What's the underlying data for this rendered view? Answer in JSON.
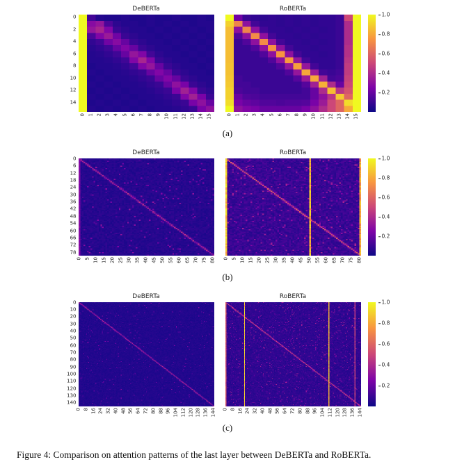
{
  "figure": {
    "caption": "Figure 4: Comparison on attention patterns of the last layer between DeBERTa and RoBERTa."
  },
  "colormap": {
    "name": "plasma",
    "stops": [
      [
        0,
        "#0d0887"
      ],
      [
        0.25,
        "#7e03a8"
      ],
      [
        0.5,
        "#cc4778"
      ],
      [
        0.75,
        "#f89540"
      ],
      [
        1,
        "#f0f921"
      ]
    ]
  },
  "colorbar": {
    "tick_labels": [
      "1.0",
      "0.8",
      "0.6",
      "0.4",
      "0.2"
    ],
    "tick_values": [
      1.0,
      0.8,
      0.6,
      0.4,
      0.2
    ]
  },
  "chart_data": [
    {
      "type": "heatmap",
      "panel_label": "(a)",
      "value_range": [
        0,
        1
      ],
      "subplots": [
        {
          "title": "DeBERTa",
          "size": 16,
          "x_ticks": [
            0,
            1,
            2,
            3,
            4,
            5,
            6,
            7,
            8,
            9,
            10,
            11,
            12,
            13,
            14,
            15
          ],
          "y_ticks": [
            0,
            2,
            4,
            6,
            8,
            10,
            12,
            14
          ],
          "values": [
            [
              1,
              0.12,
              0.05,
              0.04,
              0.04,
              0.05,
              0.04,
              0.04,
              0.05,
              0.04,
              0.04,
              0.05,
              0.04,
              0.04,
              0.05,
              0.04
            ],
            [
              1,
              0.28,
              0.32,
              0.14,
              0.07,
              0.05,
              0.05,
              0.04,
              0.05,
              0.04,
              0.05,
              0.04,
              0.05,
              0.04,
              0.05,
              0.05
            ],
            [
              1,
              0.32,
              0.38,
              0.26,
              0.1,
              0.07,
              0.05,
              0.05,
              0.04,
              0.05,
              0.04,
              0.05,
              0.04,
              0.05,
              0.04,
              0.05
            ],
            [
              1,
              0.14,
              0.26,
              0.34,
              0.22,
              0.1,
              0.07,
              0.05,
              0.05,
              0.04,
              0.05,
              0.04,
              0.05,
              0.04,
              0.05,
              0.04
            ],
            [
              1,
              0.08,
              0.11,
              0.22,
              0.28,
              0.2,
              0.1,
              0.07,
              0.05,
              0.05,
              0.04,
              0.05,
              0.04,
              0.05,
              0.04,
              0.05
            ],
            [
              1,
              0.06,
              0.08,
              0.11,
              0.2,
              0.26,
              0.2,
              0.1,
              0.07,
              0.05,
              0.05,
              0.04,
              0.05,
              0.04,
              0.05,
              0.04
            ],
            [
              1,
              0.05,
              0.06,
              0.08,
              0.11,
              0.2,
              0.32,
              0.26,
              0.12,
              0.07,
              0.05,
              0.05,
              0.04,
              0.05,
              0.04,
              0.05
            ],
            [
              1,
              0.05,
              0.05,
              0.06,
              0.08,
              0.11,
              0.26,
              0.38,
              0.26,
              0.1,
              0.07,
              0.05,
              0.05,
              0.04,
              0.05,
              0.04
            ],
            [
              1,
              0.04,
              0.05,
              0.05,
              0.06,
              0.08,
              0.12,
              0.26,
              0.32,
              0.2,
              0.1,
              0.07,
              0.05,
              0.05,
              0.04,
              0.05
            ],
            [
              1,
              0.05,
              0.04,
              0.05,
              0.05,
              0.06,
              0.08,
              0.1,
              0.2,
              0.26,
              0.2,
              0.1,
              0.07,
              0.05,
              0.05,
              0.04
            ],
            [
              1,
              0.04,
              0.05,
              0.04,
              0.05,
              0.05,
              0.06,
              0.08,
              0.1,
              0.2,
              0.26,
              0.2,
              0.1,
              0.07,
              0.05,
              0.05
            ],
            [
              1,
              0.05,
              0.04,
              0.05,
              0.04,
              0.05,
              0.05,
              0.06,
              0.08,
              0.1,
              0.2,
              0.3,
              0.24,
              0.1,
              0.07,
              0.05
            ],
            [
              1,
              0.04,
              0.05,
              0.04,
              0.05,
              0.04,
              0.05,
              0.05,
              0.06,
              0.08,
              0.1,
              0.24,
              0.36,
              0.26,
              0.1,
              0.07
            ],
            [
              1,
              0.05,
              0.04,
              0.05,
              0.04,
              0.05,
              0.04,
              0.05,
              0.05,
              0.06,
              0.08,
              0.1,
              0.26,
              0.36,
              0.24,
              0.1
            ],
            [
              1,
              0.04,
              0.05,
              0.04,
              0.05,
              0.04,
              0.05,
              0.04,
              0.05,
              0.05,
              0.06,
              0.08,
              0.1,
              0.24,
              0.3,
              0.2
            ],
            [
              1,
              0.05,
              0.04,
              0.05,
              0.04,
              0.05,
              0.04,
              0.05,
              0.04,
              0.05,
              0.05,
              0.06,
              0.08,
              0.1,
              0.24,
              0.3
            ]
          ]
        },
        {
          "title": "RoBERTa",
          "size": 16,
          "x_ticks": [
            0,
            1,
            2,
            3,
            4,
            5,
            6,
            7,
            8,
            9,
            10,
            11,
            12,
            13,
            14,
            15
          ],
          "y_ticks": [
            0,
            2,
            4,
            6,
            8,
            10,
            12,
            14
          ],
          "values": [
            [
              1,
              0.22,
              0.1,
              0.08,
              0.07,
              0.08,
              0.07,
              0.08,
              0.07,
              0.08,
              0.07,
              0.08,
              0.08,
              0.1,
              0.5,
              1
            ],
            [
              0.9,
              0.7,
              0.3,
              0.12,
              0.08,
              0.08,
              0.07,
              0.08,
              0.07,
              0.08,
              0.07,
              0.08,
              0.08,
              0.1,
              0.4,
              1
            ],
            [
              0.85,
              0.3,
              0.7,
              0.3,
              0.12,
              0.08,
              0.08,
              0.07,
              0.08,
              0.07,
              0.08,
              0.07,
              0.08,
              0.1,
              0.4,
              1
            ],
            [
              0.85,
              0.15,
              0.3,
              0.72,
              0.3,
              0.12,
              0.08,
              0.08,
              0.07,
              0.08,
              0.07,
              0.08,
              0.08,
              0.1,
              0.4,
              1
            ],
            [
              0.85,
              0.1,
              0.15,
              0.3,
              0.72,
              0.3,
              0.12,
              0.08,
              0.08,
              0.07,
              0.08,
              0.07,
              0.08,
              0.1,
              0.4,
              1
            ],
            [
              0.85,
              0.1,
              0.1,
              0.15,
              0.3,
              0.74,
              0.3,
              0.12,
              0.08,
              0.08,
              0.07,
              0.08,
              0.08,
              0.1,
              0.42,
              1
            ],
            [
              0.85,
              0.1,
              0.1,
              0.1,
              0.15,
              0.3,
              0.75,
              0.3,
              0.12,
              0.08,
              0.08,
              0.07,
              0.08,
              0.1,
              0.42,
              1
            ],
            [
              0.85,
              0.1,
              0.1,
              0.1,
              0.1,
              0.15,
              0.3,
              0.76,
              0.32,
              0.12,
              0.08,
              0.08,
              0.08,
              0.1,
              0.44,
              1
            ],
            [
              0.86,
              0.1,
              0.1,
              0.1,
              0.1,
              0.1,
              0.15,
              0.32,
              0.78,
              0.32,
              0.12,
              0.08,
              0.08,
              0.1,
              0.46,
              1
            ],
            [
              0.86,
              0.1,
              0.1,
              0.1,
              0.1,
              0.1,
              0.1,
              0.15,
              0.32,
              0.8,
              0.34,
              0.12,
              0.1,
              0.12,
              0.46,
              1
            ],
            [
              0.87,
              0.12,
              0.1,
              0.1,
              0.1,
              0.1,
              0.1,
              0.1,
              0.16,
              0.34,
              0.8,
              0.36,
              0.12,
              0.14,
              0.48,
              1
            ],
            [
              0.88,
              0.12,
              0.12,
              0.1,
              0.1,
              0.1,
              0.1,
              0.1,
              0.1,
              0.16,
              0.36,
              0.82,
              0.4,
              0.2,
              0.5,
              1
            ],
            [
              0.9,
              0.14,
              0.12,
              0.12,
              0.1,
              0.1,
              0.1,
              0.1,
              0.1,
              0.12,
              0.2,
              0.4,
              0.85,
              0.44,
              0.54,
              1
            ],
            [
              0.9,
              0.2,
              0.15,
              0.14,
              0.12,
              0.12,
              0.12,
              0.12,
              0.12,
              0.12,
              0.2,
              0.3,
              0.44,
              0.88,
              0.6,
              1
            ],
            [
              0.93,
              0.24,
              0.2,
              0.18,
              0.15,
              0.15,
              0.14,
              0.15,
              0.15,
              0.16,
              0.24,
              0.34,
              0.5,
              0.6,
              0.93,
              1
            ],
            [
              1,
              0.3,
              0.26,
              0.24,
              0.2,
              0.2,
              0.2,
              0.2,
              0.2,
              0.24,
              0.3,
              0.4,
              0.5,
              0.6,
              0.8,
              1
            ]
          ]
        }
      ]
    },
    {
      "type": "heatmap",
      "panel_label": "(b)",
      "value_range": [
        0,
        1
      ],
      "subplots": [
        {
          "title": "DeBERTa",
          "size": 81,
          "seed": 7,
          "x_ticks": [
            0,
            5,
            10,
            15,
            20,
            25,
            30,
            35,
            40,
            45,
            50,
            55,
            60,
            65,
            70,
            75,
            80
          ],
          "y_ticks": [
            0,
            6,
            12,
            18,
            24,
            30,
            36,
            42,
            48,
            54,
            60,
            66,
            72,
            78
          ],
          "patterns": {
            "background": 0.03,
            "noise": 0.05,
            "diagonal": {
              "intensity": 0.45,
              "jitter": 0.35
            },
            "columns": [
              {
                "index": 0,
                "intensity": 0.3
              }
            ],
            "speckle": {
              "density": 0.03,
              "intensity": 0.25
            }
          }
        },
        {
          "title": "RoBERTa",
          "size": 81,
          "seed": 11,
          "x_ticks": [
            0,
            5,
            10,
            15,
            20,
            25,
            30,
            35,
            40,
            45,
            50,
            55,
            60,
            65,
            70,
            75,
            80
          ],
          "y_ticks": [
            0,
            6,
            12,
            18,
            24,
            30,
            36,
            42,
            48,
            54,
            60,
            66,
            72,
            78
          ],
          "patterns": {
            "background": 0.05,
            "noise": 0.09,
            "diagonal": {
              "intensity": 0.62,
              "jitter": 0.3
            },
            "columns": [
              {
                "index": 0,
                "intensity": 0.95
              },
              {
                "index": 50,
                "intensity": 0.9
              },
              {
                "index": 80,
                "intensity": 0.85
              }
            ],
            "speckle": {
              "density": 0.06,
              "intensity": 0.3
            }
          }
        }
      ]
    },
    {
      "type": "heatmap",
      "panel_label": "(c)",
      "value_range": [
        0,
        1
      ],
      "subplots": [
        {
          "title": "DeBERTa",
          "size": 145,
          "seed": 13,
          "x_ticks": [
            0,
            8,
            16,
            24,
            32,
            40,
            48,
            56,
            64,
            72,
            80,
            88,
            96,
            104,
            112,
            120,
            128,
            136,
            144
          ],
          "y_ticks": [
            0,
            10,
            20,
            30,
            40,
            50,
            60,
            70,
            80,
            90,
            100,
            110,
            120,
            130,
            140
          ],
          "patterns": {
            "background": 0.025,
            "noise": 0.04,
            "diagonal": {
              "intensity": 0.45,
              "jitter": 0.35
            },
            "columns": [],
            "speckle": {
              "density": 0.02,
              "intensity": 0.22
            }
          }
        },
        {
          "title": "RoBERTa",
          "size": 145,
          "seed": 17,
          "x_ticks": [
            0,
            8,
            16,
            24,
            32,
            40,
            48,
            56,
            64,
            72,
            80,
            88,
            96,
            104,
            112,
            120,
            128,
            136,
            144
          ],
          "y_ticks": [
            0,
            10,
            20,
            30,
            40,
            50,
            60,
            70,
            80,
            90,
            100,
            110,
            120,
            130,
            140
          ],
          "patterns": {
            "background": 0.04,
            "noise": 0.07,
            "diagonal": {
              "intensity": 0.6,
              "jitter": 0.3
            },
            "columns": [
              {
                "index": 0,
                "intensity": 0.6
              },
              {
                "index": 20,
                "intensity": 0.95
              },
              {
                "index": 110,
                "intensity": 0.9
              },
              {
                "index": 138,
                "intensity": 0.5
              }
            ],
            "speckle": {
              "density": 0.05,
              "intensity": 0.3
            }
          }
        }
      ]
    }
  ]
}
